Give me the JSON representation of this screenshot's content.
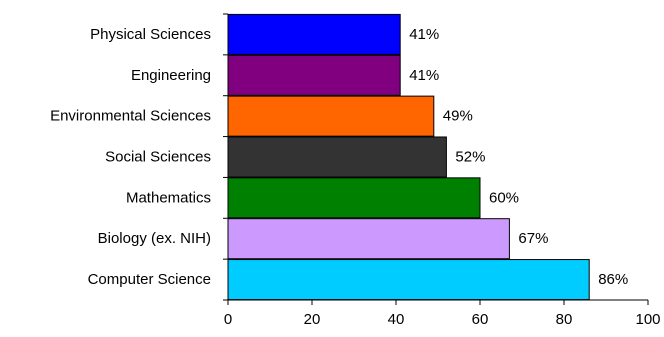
{
  "chart_data": {
    "type": "bar",
    "orientation": "horizontal",
    "categories": [
      "Physical Sciences",
      "Engineering",
      "Environmental Sciences",
      "Social Sciences",
      "Mathematics",
      "Biology (ex. NIH)",
      "Computer Science"
    ],
    "values": [
      41,
      41,
      49,
      52,
      60,
      67,
      86
    ],
    "value_labels": [
      "41%",
      "41%",
      "49%",
      "52%",
      "60%",
      "67%",
      "86%"
    ],
    "colors": [
      "#0000ff",
      "#800080",
      "#ff6600",
      "#333333",
      "#008000",
      "#cc99ff",
      "#00ccff"
    ],
    "title": "",
    "xlabel": "",
    "ylabel": "",
    "xlim": [
      0,
      100
    ],
    "xticks": [
      0,
      20,
      40,
      60,
      80,
      100
    ],
    "grid": false,
    "legend": "none"
  }
}
